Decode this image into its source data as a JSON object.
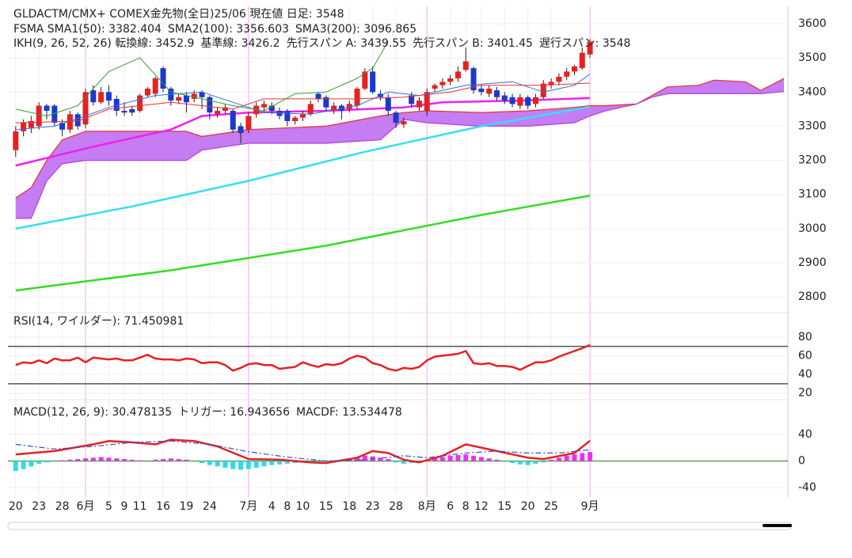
{
  "chart_data": [
    {
      "type": "candlestick",
      "title": "GLDACTM/CMX+ COMEX金先物(全日)25/06 現在値 日足: 3548",
      "ylim": [
        2754,
        3651
      ],
      "yticks": [
        2800,
        2900,
        3000,
        3100,
        3200,
        3300,
        3400,
        3500,
        3600
      ],
      "grid": true,
      "up_color": "#e82020",
      "down_color": "#1a3acc",
      "wick_color": "#222222",
      "ohlc": [
        [
          3230,
          3300,
          3210,
          3285
        ],
        [
          3285,
          3320,
          3270,
          3310
        ],
        [
          3295,
          3330,
          3280,
          3315
        ],
        [
          3300,
          3370,
          3290,
          3360
        ],
        [
          3360,
          3365,
          3320,
          3345
        ],
        [
          3360,
          3365,
          3300,
          3310
        ],
        [
          3310,
          3320,
          3270,
          3290
        ],
        [
          3290,
          3345,
          3280,
          3335
        ],
        [
          3335,
          3340,
          3290,
          3300
        ],
        [
          3305,
          3410,
          3295,
          3400
        ],
        [
          3405,
          3420,
          3360,
          3370
        ],
        [
          3370,
          3415,
          3365,
          3400
        ],
        [
          3400,
          3420,
          3360,
          3375
        ],
        [
          3380,
          3390,
          3330,
          3345
        ],
        [
          3345,
          3370,
          3330,
          3340
        ],
        [
          3350,
          3360,
          3330,
          3340
        ],
        [
          3345,
          3395,
          3340,
          3390
        ],
        [
          3390,
          3415,
          3385,
          3410
        ],
        [
          3395,
          3445,
          3385,
          3440
        ],
        [
          3470,
          3475,
          3400,
          3410
        ],
        [
          3410,
          3415,
          3360,
          3375
        ],
        [
          3375,
          3395,
          3365,
          3385
        ],
        [
          3390,
          3400,
          3340,
          3370
        ],
        [
          3380,
          3405,
          3370,
          3395
        ],
        [
          3400,
          3405,
          3350,
          3385
        ],
        [
          3385,
          3390,
          3320,
          3340
        ],
        [
          3335,
          3355,
          3325,
          3345
        ],
        [
          3345,
          3365,
          3335,
          3355
        ],
        [
          3345,
          3350,
          3280,
          3290
        ],
        [
          3300,
          3310,
          3250,
          3280
        ],
        [
          3290,
          3340,
          3280,
          3330
        ],
        [
          3335,
          3370,
          3325,
          3360
        ],
        [
          3355,
          3375,
          3345,
          3365
        ],
        [
          3360,
          3370,
          3335,
          3345
        ],
        [
          3345,
          3355,
          3320,
          3330
        ],
        [
          3345,
          3350,
          3300,
          3315
        ],
        [
          3315,
          3330,
          3305,
          3325
        ],
        [
          3325,
          3345,
          3315,
          3335
        ],
        [
          3335,
          3375,
          3330,
          3365
        ],
        [
          3395,
          3400,
          3370,
          3380
        ],
        [
          3385,
          3390,
          3345,
          3355
        ],
        [
          3345,
          3370,
          3335,
          3360
        ],
        [
          3360,
          3365,
          3320,
          3345
        ],
        [
          3350,
          3375,
          3340,
          3365
        ],
        [
          3360,
          3415,
          3350,
          3410
        ],
        [
          3410,
          3470,
          3405,
          3460
        ],
        [
          3460,
          3475,
          3395,
          3400
        ],
        [
          3395,
          3405,
          3375,
          3385
        ],
        [
          3385,
          3395,
          3330,
          3345
        ],
        [
          3340,
          3345,
          3295,
          3310
        ],
        [
          3305,
          3325,
          3295,
          3315
        ],
        [
          3390,
          3400,
          3355,
          3365
        ],
        [
          3355,
          3385,
          3345,
          3375
        ],
        [
          3345,
          3410,
          3330,
          3400
        ],
        [
          3410,
          3425,
          3400,
          3420
        ],
        [
          3420,
          3440,
          3410,
          3430
        ],
        [
          3430,
          3450,
          3420,
          3440
        ],
        [
          3440,
          3475,
          3430,
          3460
        ],
        [
          3465,
          3530,
          3460,
          3490
        ],
        [
          3470,
          3475,
          3395,
          3405
        ],
        [
          3410,
          3420,
          3390,
          3400
        ],
        [
          3395,
          3420,
          3385,
          3410
        ],
        [
          3405,
          3415,
          3375,
          3385
        ],
        [
          3390,
          3400,
          3365,
          3375
        ],
        [
          3385,
          3395,
          3355,
          3365
        ],
        [
          3360,
          3395,
          3350,
          3385
        ],
        [
          3385,
          3390,
          3350,
          3360
        ],
        [
          3365,
          3395,
          3355,
          3385
        ],
        [
          3385,
          3435,
          3380,
          3425
        ],
        [
          3420,
          3440,
          3410,
          3430
        ],
        [
          3430,
          3455,
          3420,
          3445
        ],
        [
          3445,
          3470,
          3435,
          3460
        ],
        [
          3460,
          3480,
          3450,
          3475
        ],
        [
          3470,
          3530,
          3465,
          3515
        ],
        [
          3510,
          3555,
          3500,
          3548
        ]
      ],
      "series": [
        {
          "name": "FSMA SMA1(50): 3382.404",
          "color": "#f020f0",
          "x": [
            0,
            10,
            20,
            24,
            30,
            40,
            50,
            55,
            65,
            74
          ],
          "values": [
            3185,
            3240,
            3290,
            3330,
            3340,
            3345,
            3355,
            3370,
            3375,
            3382.404
          ]
        },
        {
          "name": "SMA2(100): 3356.603",
          "color": "#33e0f0",
          "x": [
            0,
            15,
            30,
            45,
            60,
            74
          ],
          "values": [
            3000,
            3065,
            3140,
            3225,
            3300,
            3356.603
          ]
        },
        {
          "name": "SMA3(200): 3096.865",
          "color": "#33dd22",
          "x": [
            0,
            20,
            40,
            60,
            74
          ],
          "values": [
            2819,
            2878,
            2950,
            3040,
            3096.865
          ]
        }
      ],
      "ichimoku": {
        "tenkan": {
          "name": "IKH(9, 26, 52, 26) 転換線: 3452.9",
          "color": "#3070e0",
          "x": [
            0,
            5,
            9,
            12,
            18,
            24,
            28,
            32,
            38,
            44,
            48,
            52,
            58,
            64,
            68,
            72,
            74
          ],
          "values": [
            3290,
            3300,
            3330,
            3355,
            3390,
            3400,
            3370,
            3340,
            3335,
            3360,
            3400,
            3390,
            3420,
            3430,
            3400,
            3420,
            3452.9
          ]
        },
        "kijun": {
          "name": "基準線: 3426.2",
          "color": "#e83030",
          "x": [
            0,
            8,
            12,
            20,
            28,
            32,
            44,
            50,
            56,
            60,
            68,
            74
          ],
          "values": [
            3310,
            3315,
            3350,
            3370,
            3350,
            3380,
            3380,
            3385,
            3400,
            3420,
            3420,
            3426.2
          ]
        },
        "chikou": {
          "name": "遅行スパン: 3548",
          "color": "#30a030",
          "x": [
            0,
            4,
            8,
            12,
            16,
            20,
            24,
            28,
            32,
            36,
            40,
            44,
            46,
            48
          ],
          "values": [
            3350,
            3330,
            3360,
            3460,
            3500,
            3400,
            3380,
            3360,
            3345,
            3395,
            3400,
            3440,
            3470,
            3548
          ]
        },
        "cloud": {
          "fill": "#c67cf2",
          "x": [
            0,
            2,
            4,
            6,
            9,
            15,
            22,
            24,
            27,
            30,
            40,
            47,
            50,
            53,
            60,
            66,
            72,
            74,
            76,
            80,
            82,
            84,
            88,
            90,
            94,
            96,
            99
          ],
          "span_a": {
            "name": "先行スパン A: 3439.55",
            "color": "#e83030",
            "values": [
              3090,
              3120,
              3200,
              3260,
              3285,
              3285,
              3285,
              3270,
              3280,
              3290,
              3300,
              3330,
              3340,
              3345,
              3340,
              3345,
              3355,
              3360,
              3360,
              3365,
              3390,
              3415,
              3420,
              3435,
              3430,
              3405,
              3439.55
            ]
          },
          "span_b": {
            "name": "先行スパン B: 3401.45",
            "color": "#b040e0",
            "values": [
              3030,
              3030,
              3140,
              3190,
              3200,
              3200,
              3200,
              3230,
              3240,
              3250,
              3250,
              3260,
              3320,
              3310,
              3300,
              3300,
              3310,
              3330,
              3345,
              3365,
              3385,
              3395,
              3395,
              3395,
              3395,
              3395,
              3401.45
            ]
          }
        }
      }
    },
    {
      "type": "line",
      "ylim": [
        13,
        106
      ],
      "yticks": [
        20,
        40,
        60,
        80
      ],
      "grid": true,
      "levels": [
        30,
        70
      ],
      "level_color": "#555555",
      "series": [
        {
          "name": "RSI(14, ワイルダー): 71.450981",
          "color": "#e82020",
          "legend_color": "#222222",
          "values": [
            50,
            53,
            52,
            55,
            52,
            57,
            55,
            55,
            58,
            53,
            58,
            57,
            56,
            57,
            55,
            55,
            58,
            61,
            57,
            56,
            56,
            55,
            57,
            56,
            52,
            53,
            53,
            50,
            44,
            47,
            51,
            52,
            50,
            50,
            46,
            47,
            48,
            53,
            50,
            48,
            51,
            50,
            52,
            57,
            60,
            58,
            52,
            50,
            46,
            44,
            47,
            46,
            48,
            55,
            59,
            60,
            61,
            62,
            65,
            52,
            51,
            52,
            49,
            49,
            48,
            45,
            49,
            53,
            53,
            55,
            59,
            62,
            65,
            68,
            71.45
          ]
        }
      ]
    },
    {
      "type": "macd",
      "ylim": [
        -54,
        92
      ],
      "yticks": [
        -40,
        0,
        40
      ],
      "grid": true,
      "zero_line_color": "#3a9a3a",
      "xlim": [
        -1,
        99.5
      ],
      "xticks": [
        {
          "value": 0,
          "label": "20"
        },
        {
          "value": 3,
          "label": "23"
        },
        {
          "value": 6,
          "label": "28"
        },
        {
          "value": 12,
          "label": "5"
        },
        {
          "value": 14,
          "label": "9"
        },
        {
          "value": 16,
          "label": "11"
        },
        {
          "value": 19,
          "label": "16"
        },
        {
          "value": 22,
          "label": "19"
        },
        {
          "value": 25,
          "label": "24"
        },
        {
          "value": 33,
          "label": "4"
        },
        {
          "value": 35,
          "label": "8"
        },
        {
          "value": 37,
          "label": "10"
        },
        {
          "value": 40,
          "label": "15"
        },
        {
          "value": 43,
          "label": "18"
        },
        {
          "value": 46,
          "label": "23"
        },
        {
          "value": 49,
          "label": "28"
        },
        {
          "value": 56,
          "label": "6"
        },
        {
          "value": 58,
          "label": "8"
        },
        {
          "value": 60,
          "label": "12"
        },
        {
          "value": 63,
          "label": "15"
        },
        {
          "value": 66,
          "label": "20"
        },
        {
          "value": 69,
          "label": "25"
        }
      ],
      "month_ticks": [
        {
          "value": 9,
          "label": "6月"
        },
        {
          "value": 30,
          "label": "7月"
        },
        {
          "value": 53,
          "label": "8月"
        },
        {
          "value": 74,
          "label": "9月"
        }
      ],
      "month_color": "#b040e0",
      "month_line_color": "#f4a8f0",
      "series": [
        {
          "name": "MACD(12, 26, 9): 30.478135",
          "kind": "line",
          "color": "#e82020",
          "x": [
            0,
            5,
            10,
            12,
            15,
            18,
            20,
            23,
            26,
            30,
            34,
            38,
            40,
            44,
            46,
            48,
            50,
            52,
            55,
            58,
            62,
            66,
            68,
            72,
            74
          ],
          "values": [
            10,
            15,
            25,
            30,
            28,
            25,
            32,
            30,
            22,
            3,
            2,
            -2,
            -3,
            5,
            15,
            12,
            2,
            -2,
            8,
            25,
            15,
            5,
            3,
            12,
            30.478
          ]
        },
        {
          "name": "トリガー: 16.943656",
          "kind": "line",
          "dashed": true,
          "color": "#3050e0",
          "x": [
            0,
            5,
            10,
            15,
            20,
            25,
            30,
            35,
            40,
            45,
            50,
            53,
            58,
            62,
            66,
            70,
            74
          ],
          "values": [
            25,
            18,
            22,
            28,
            30,
            25,
            14,
            6,
            0,
            2,
            8,
            5,
            12,
            15,
            12,
            12,
            16.944
          ]
        },
        {
          "name": "MACDF: 13.534478",
          "kind": "bar",
          "color": "#2a9a2a",
          "pos_color": "#f030f0",
          "neg_color": "#30d8f0",
          "values": [
            -15,
            -12,
            -8,
            -4,
            -2,
            0,
            1,
            2,
            3,
            4,
            5,
            6,
            5,
            4,
            3,
            2,
            1,
            0,
            2,
            3,
            4,
            3,
            2,
            0,
            -3,
            -6,
            -8,
            -10,
            -12,
            -13,
            -12,
            -10,
            -8,
            -6,
            -5,
            -4,
            -3,
            -2,
            -2,
            -1,
            0,
            1,
            2,
            4,
            6,
            8,
            7,
            5,
            3,
            -2,
            -4,
            -3,
            -1,
            2,
            4,
            6,
            8,
            9,
            10,
            8,
            6,
            4,
            2,
            0,
            -3,
            -5,
            -6,
            -4,
            -2,
            2,
            5,
            8,
            10,
            12,
            13.53
          ]
        }
      ]
    }
  ]
}
